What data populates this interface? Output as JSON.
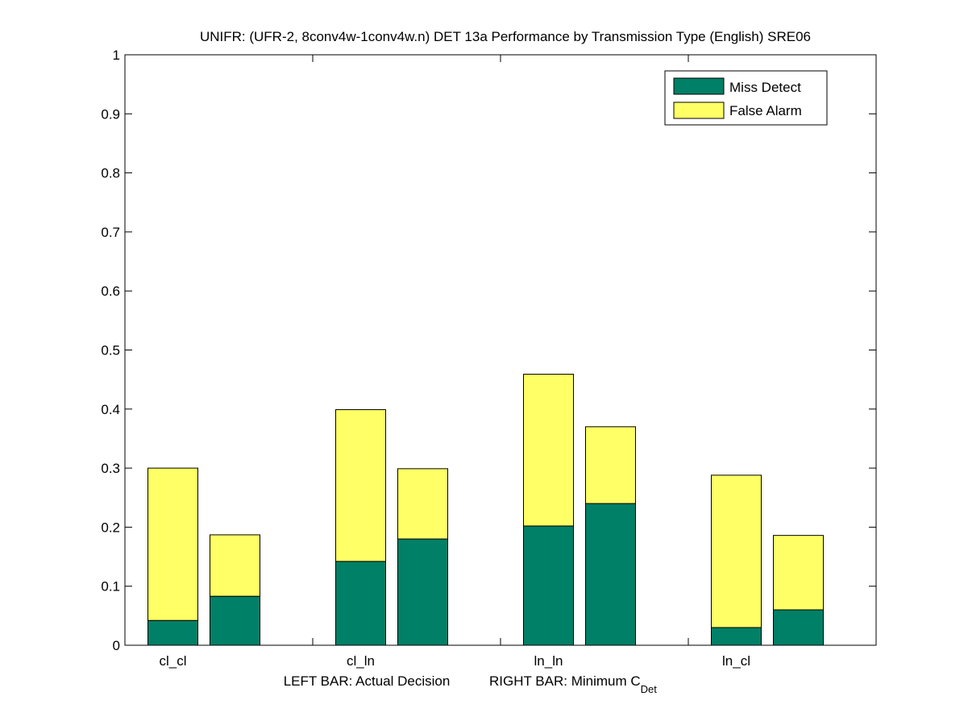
{
  "chart_data": {
    "type": "bar",
    "stacked": true,
    "title": "UNIFR: (UFR-2, 8conv4w-1conv4w.n) DET 13a Performance by Transmission Type (English) SRE06",
    "xlabel_left": "LEFT BAR: Actual Decision",
    "xlabel_right_prefix": "RIGHT BAR: Minimum C",
    "xlabel_right_subscript": "Det",
    "categories": [
      "cl_cl",
      "cl_ln",
      "ln_ln",
      "ln_cl"
    ],
    "ylim": [
      0,
      1
    ],
    "yticks": [
      "0",
      "0.1",
      "0.2",
      "0.3",
      "0.4",
      "0.5",
      "0.6",
      "0.7",
      "0.8",
      "0.9",
      "1"
    ],
    "series": [
      {
        "name": "Miss Detect",
        "color": "#008066",
        "actual": [
          0.042,
          0.142,
          0.202,
          0.03
        ],
        "minimum": [
          0.083,
          0.18,
          0.24,
          0.06
        ]
      },
      {
        "name": "False Alarm",
        "color": "#ffff66",
        "actual": [
          0.258,
          0.257,
          0.257,
          0.258
        ],
        "minimum": [
          0.104,
          0.119,
          0.13,
          0.126
        ]
      }
    ],
    "legend_position": "top-right",
    "grid": false
  }
}
